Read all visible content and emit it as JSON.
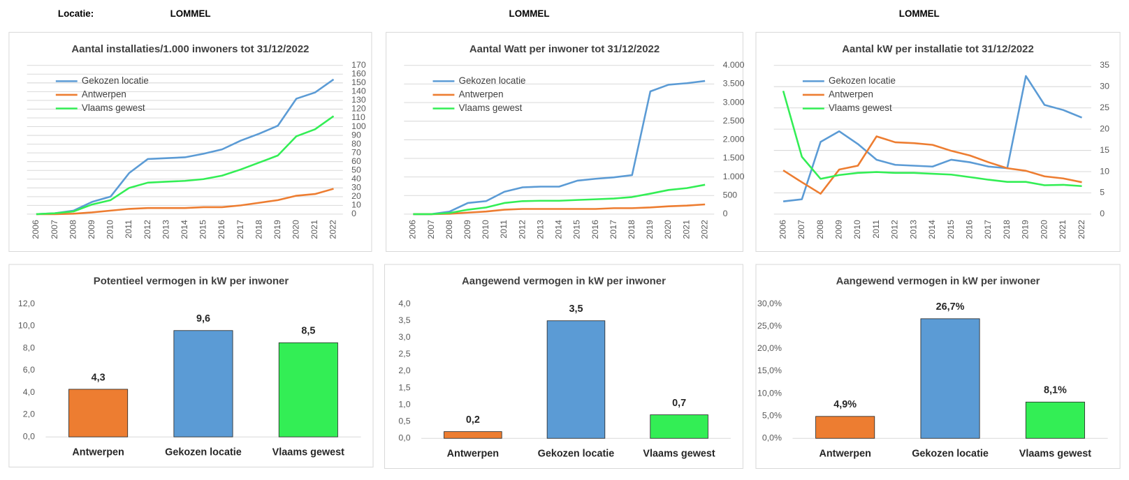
{
  "header": {
    "label": "Locatie:",
    "locations": [
      "LOMMEL",
      "LOMMEL",
      "LOMMEL"
    ]
  },
  "chart_data": [
    {
      "type": "line",
      "title": "Aantal installaties/1.000  inwoners tot 31/12/2022",
      "categories": [
        "2006",
        "2007",
        "2008",
        "2009",
        "2010",
        "2011",
        "2012",
        "2013",
        "2014",
        "2015",
        "2016",
        "2017",
        "2018",
        "2019",
        "2020",
        "2021",
        "2022"
      ],
      "series": [
        {
          "name": "Gekozen locatie",
          "color": "#5b9bd5",
          "values": [
            0,
            1,
            4,
            14,
            20,
            47,
            63,
            64,
            65,
            69,
            74,
            84,
            92,
            101,
            132,
            139,
            154
          ]
        },
        {
          "name": "Antwerpen",
          "color": "#ed7d31",
          "values": [
            0,
            0,
            0.5,
            2,
            4,
            6,
            7,
            7,
            7,
            8,
            8,
            10,
            13,
            16,
            21,
            23,
            29
          ]
        },
        {
          "name": "Vlaams gewest",
          "color": "#33ee55",
          "values": [
            0,
            1,
            3,
            11,
            16,
            30,
            36,
            37,
            38,
            40,
            44,
            51,
            59,
            67,
            89,
            97,
            112
          ]
        }
      ],
      "ylim": [
        0,
        170
      ],
      "yticks": [
        0,
        10,
        20,
        30,
        40,
        50,
        60,
        70,
        80,
        90,
        100,
        110,
        120,
        130,
        140,
        150,
        160,
        170
      ],
      "y_axis_side": "right",
      "grid": true,
      "legend": "upper left"
    },
    {
      "type": "line",
      "title": "Aantal Watt per inwoner tot 31/12/2022",
      "categories": [
        "2006",
        "2007",
        "2008",
        "2009",
        "2010",
        "2011",
        "2012",
        "2013",
        "2014",
        "2015",
        "2016",
        "2017",
        "2018",
        "2019",
        "2020",
        "2021",
        "2022"
      ],
      "series": [
        {
          "name": "Gekozen locatie",
          "color": "#5b9bd5",
          "values": [
            0,
            0,
            70,
            300,
            350,
            600,
            720,
            740,
            740,
            900,
            950,
            990,
            1050,
            3300,
            3480,
            3520,
            3580
          ]
        },
        {
          "name": "Antwerpen",
          "color": "#ed7d31",
          "values": [
            0,
            0,
            10,
            40,
            70,
            120,
            140,
            140,
            140,
            140,
            140,
            160,
            160,
            180,
            210,
            230,
            260
          ]
        },
        {
          "name": "Vlaams gewest",
          "color": "#33ee55",
          "values": [
            0,
            0,
            30,
            120,
            180,
            300,
            350,
            360,
            360,
            380,
            400,
            420,
            460,
            550,
            650,
            700,
            790
          ]
        }
      ],
      "ylim": [
        0,
        4000
      ],
      "yticks": [
        0,
        500,
        {
          "value": 1000,
          "label": "1.000"
        },
        {
          "value": 1500,
          "label": "1.500"
        },
        {
          "value": 2000,
          "label": "2.000"
        },
        {
          "value": 2500,
          "label": "2.500"
        },
        {
          "value": 3000,
          "label": "3.000"
        },
        {
          "value": 3500,
          "label": "3.500"
        },
        {
          "value": 4000,
          "label": "4.000"
        }
      ],
      "y_axis_side": "right",
      "grid": true,
      "legend": "upper left"
    },
    {
      "type": "line",
      "title": "Aantal kW per installatie  tot 31/12/2022",
      "categories": [
        "2006",
        "2007",
        "2008",
        "2009",
        "2010",
        "2011",
        "2012",
        "2013",
        "2014",
        "2015",
        "2016",
        "2017",
        "2018",
        "2019",
        "2020",
        "2021",
        "2022"
      ],
      "series": [
        {
          "name": "Gekozen locatie",
          "color": "#5b9bd5",
          "values": [
            3,
            3.5,
            17,
            19.5,
            16.5,
            12.8,
            11.6,
            11.4,
            11.2,
            12.8,
            12.2,
            11.2,
            10.8,
            32.5,
            25.7,
            24.5,
            22.7
          ]
        },
        {
          "name": "Antwerpen",
          "color": "#ed7d31",
          "values": [
            10.3,
            7.5,
            4.8,
            10.5,
            11.4,
            18.3,
            16.9,
            16.7,
            16.3,
            14.9,
            13.8,
            12.2,
            10.8,
            10.2,
            8.9,
            8.4,
            7.5
          ]
        },
        {
          "name": "Vlaams gewest",
          "color": "#33ee55",
          "values": [
            29,
            13.5,
            8.3,
            9.2,
            9.7,
            9.9,
            9.7,
            9.7,
            9.5,
            9.3,
            8.7,
            8.1,
            7.6,
            7.6,
            6.8,
            6.9,
            6.6
          ]
        }
      ],
      "ylim": [
        0,
        35
      ],
      "yticks": [
        0,
        5,
        10,
        15,
        20,
        25,
        30,
        35
      ],
      "y_axis_side": "right",
      "grid": true,
      "legend": "upper left"
    },
    {
      "type": "bar",
      "title": "Potentieel vermogen in kW per inwoner",
      "categories": [
        "Antwerpen",
        "Gekozen locatie",
        "Vlaams gewest"
      ],
      "values": [
        4.3,
        9.6,
        8.5
      ],
      "value_labels": [
        "4,3",
        "9,6",
        "8,5"
      ],
      "colors": [
        "#ed7d31",
        "#5b9bd5",
        "#33ee55"
      ],
      "ylim": [
        0,
        12
      ],
      "yticks": [
        {
          "value": 0,
          "label": "0,0"
        },
        {
          "value": 2,
          "label": "2,0"
        },
        {
          "value": 4,
          "label": "4,0"
        },
        {
          "value": 6,
          "label": "6,0"
        },
        {
          "value": 8,
          "label": "8,0"
        },
        {
          "value": 10,
          "label": "10,0"
        },
        {
          "value": 12,
          "label": "12,0"
        }
      ],
      "grid": false
    },
    {
      "type": "bar",
      "title": "Aangewend vermogen in kW per inwoner",
      "categories": [
        "Antwerpen",
        "Gekozen locatie",
        "Vlaams gewest"
      ],
      "values": [
        0.2,
        3.5,
        0.7
      ],
      "value_labels": [
        "0,2",
        "3,5",
        "0,7"
      ],
      "colors": [
        "#ed7d31",
        "#5b9bd5",
        "#33ee55"
      ],
      "ylim": [
        0,
        4
      ],
      "yticks": [
        {
          "value": 0,
          "label": "0,0"
        },
        {
          "value": 0.5,
          "label": "0,5"
        },
        {
          "value": 1,
          "label": "1,0"
        },
        {
          "value": 1.5,
          "label": "1,5"
        },
        {
          "value": 2,
          "label": "2,0"
        },
        {
          "value": 2.5,
          "label": "2,5"
        },
        {
          "value": 3,
          "label": "3,0"
        },
        {
          "value": 3.5,
          "label": "3,5"
        },
        {
          "value": 4,
          "label": "4,0"
        }
      ],
      "grid": false
    },
    {
      "type": "bar",
      "title": "Aangewend vermogen in kW per inwoner",
      "categories": [
        "Antwerpen",
        "Gekozen locatie",
        "Vlaams gewest"
      ],
      "values": [
        4.9,
        26.7,
        8.1
      ],
      "value_labels": [
        "4,9%",
        "26,7%",
        "8,1%"
      ],
      "colors": [
        "#ed7d31",
        "#5b9bd5",
        "#33ee55"
      ],
      "ylim": [
        0,
        30
      ],
      "yticks": [
        {
          "value": 0,
          "label": "0,0%"
        },
        {
          "value": 5,
          "label": "5,0%"
        },
        {
          "value": 10,
          "label": "10,0%"
        },
        {
          "value": 15,
          "label": "15,0%"
        },
        {
          "value": 20,
          "label": "20,0%"
        },
        {
          "value": 25,
          "label": "25,0%"
        },
        {
          "value": 30,
          "label": "30,0%"
        }
      ],
      "grid": false
    }
  ]
}
